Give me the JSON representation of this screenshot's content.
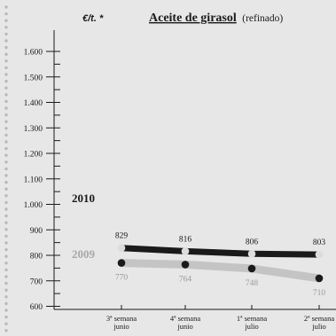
{
  "chart_data": {
    "type": "line",
    "title_main": "Aceite de girasol",
    "title_sub": "(refinado)",
    "unit_label": "€/t. *",
    "categories": [
      [
        "3ª semana",
        "junio"
      ],
      [
        "4ª semana",
        "junio"
      ],
      [
        "1ª semana",
        "julio"
      ],
      [
        "2ª semana",
        "julio"
      ]
    ],
    "y_ticks": [
      "1.600",
      "1.500",
      "1.400",
      "1.300",
      "1.200",
      "1.100",
      "1.000",
      "900",
      "800",
      "700",
      "600"
    ],
    "y_tick_values": [
      1600,
      1500,
      1400,
      1300,
      1200,
      1100,
      1000,
      900,
      800,
      700,
      600
    ],
    "ylim": [
      500,
      1700
    ],
    "series": [
      {
        "name": "2010",
        "values": [
          829,
          816,
          806,
          803
        ],
        "labels": [
          "829",
          "816",
          "806",
          "803"
        ],
        "line_color": "#1a1a1a",
        "marker_color": "#dcdcdc",
        "label_color": "#1a1a1a"
      },
      {
        "name": "2009",
        "values": [
          770,
          764,
          748,
          710
        ],
        "labels": [
          "770",
          "764",
          "748",
          "710"
        ],
        "line_color": "#c4c4c4",
        "marker_color": "#1a1a1a",
        "label_color": "#9a9a9a"
      }
    ],
    "colors": {
      "background": "#e7e7e7",
      "axis": "#1a1a1a",
      "dots": "#b9b9b9"
    }
  }
}
